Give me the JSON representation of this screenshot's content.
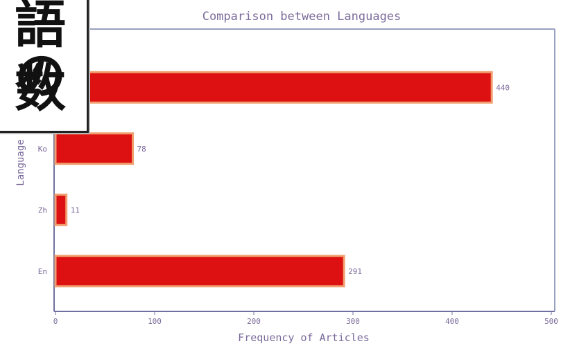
{
  "chart_data": {
    "type": "bar",
    "orientation": "horizontal",
    "title": "Comparison between Languages",
    "xlabel": "Frequency of Articles",
    "ylabel": "Language",
    "categories": [
      "",
      "Ko",
      "Zh",
      "En"
    ],
    "values": [
      440,
      78,
      11,
      291
    ],
    "value_labels": [
      "440",
      "78",
      "11",
      "291"
    ],
    "xlim": [
      0,
      500
    ],
    "xticks": [
      0,
      100,
      200,
      300,
      400,
      500
    ],
    "xtick_labels": [
      "0",
      "100",
      "200",
      "300",
      "400",
      "500"
    ],
    "grid": false,
    "legend": "none",
    "bar_color": "#dd1111",
    "bar_edge_color": "#f0a070"
  },
  "overlay": {
    "line1": "語の",
    "line2": "数"
  }
}
